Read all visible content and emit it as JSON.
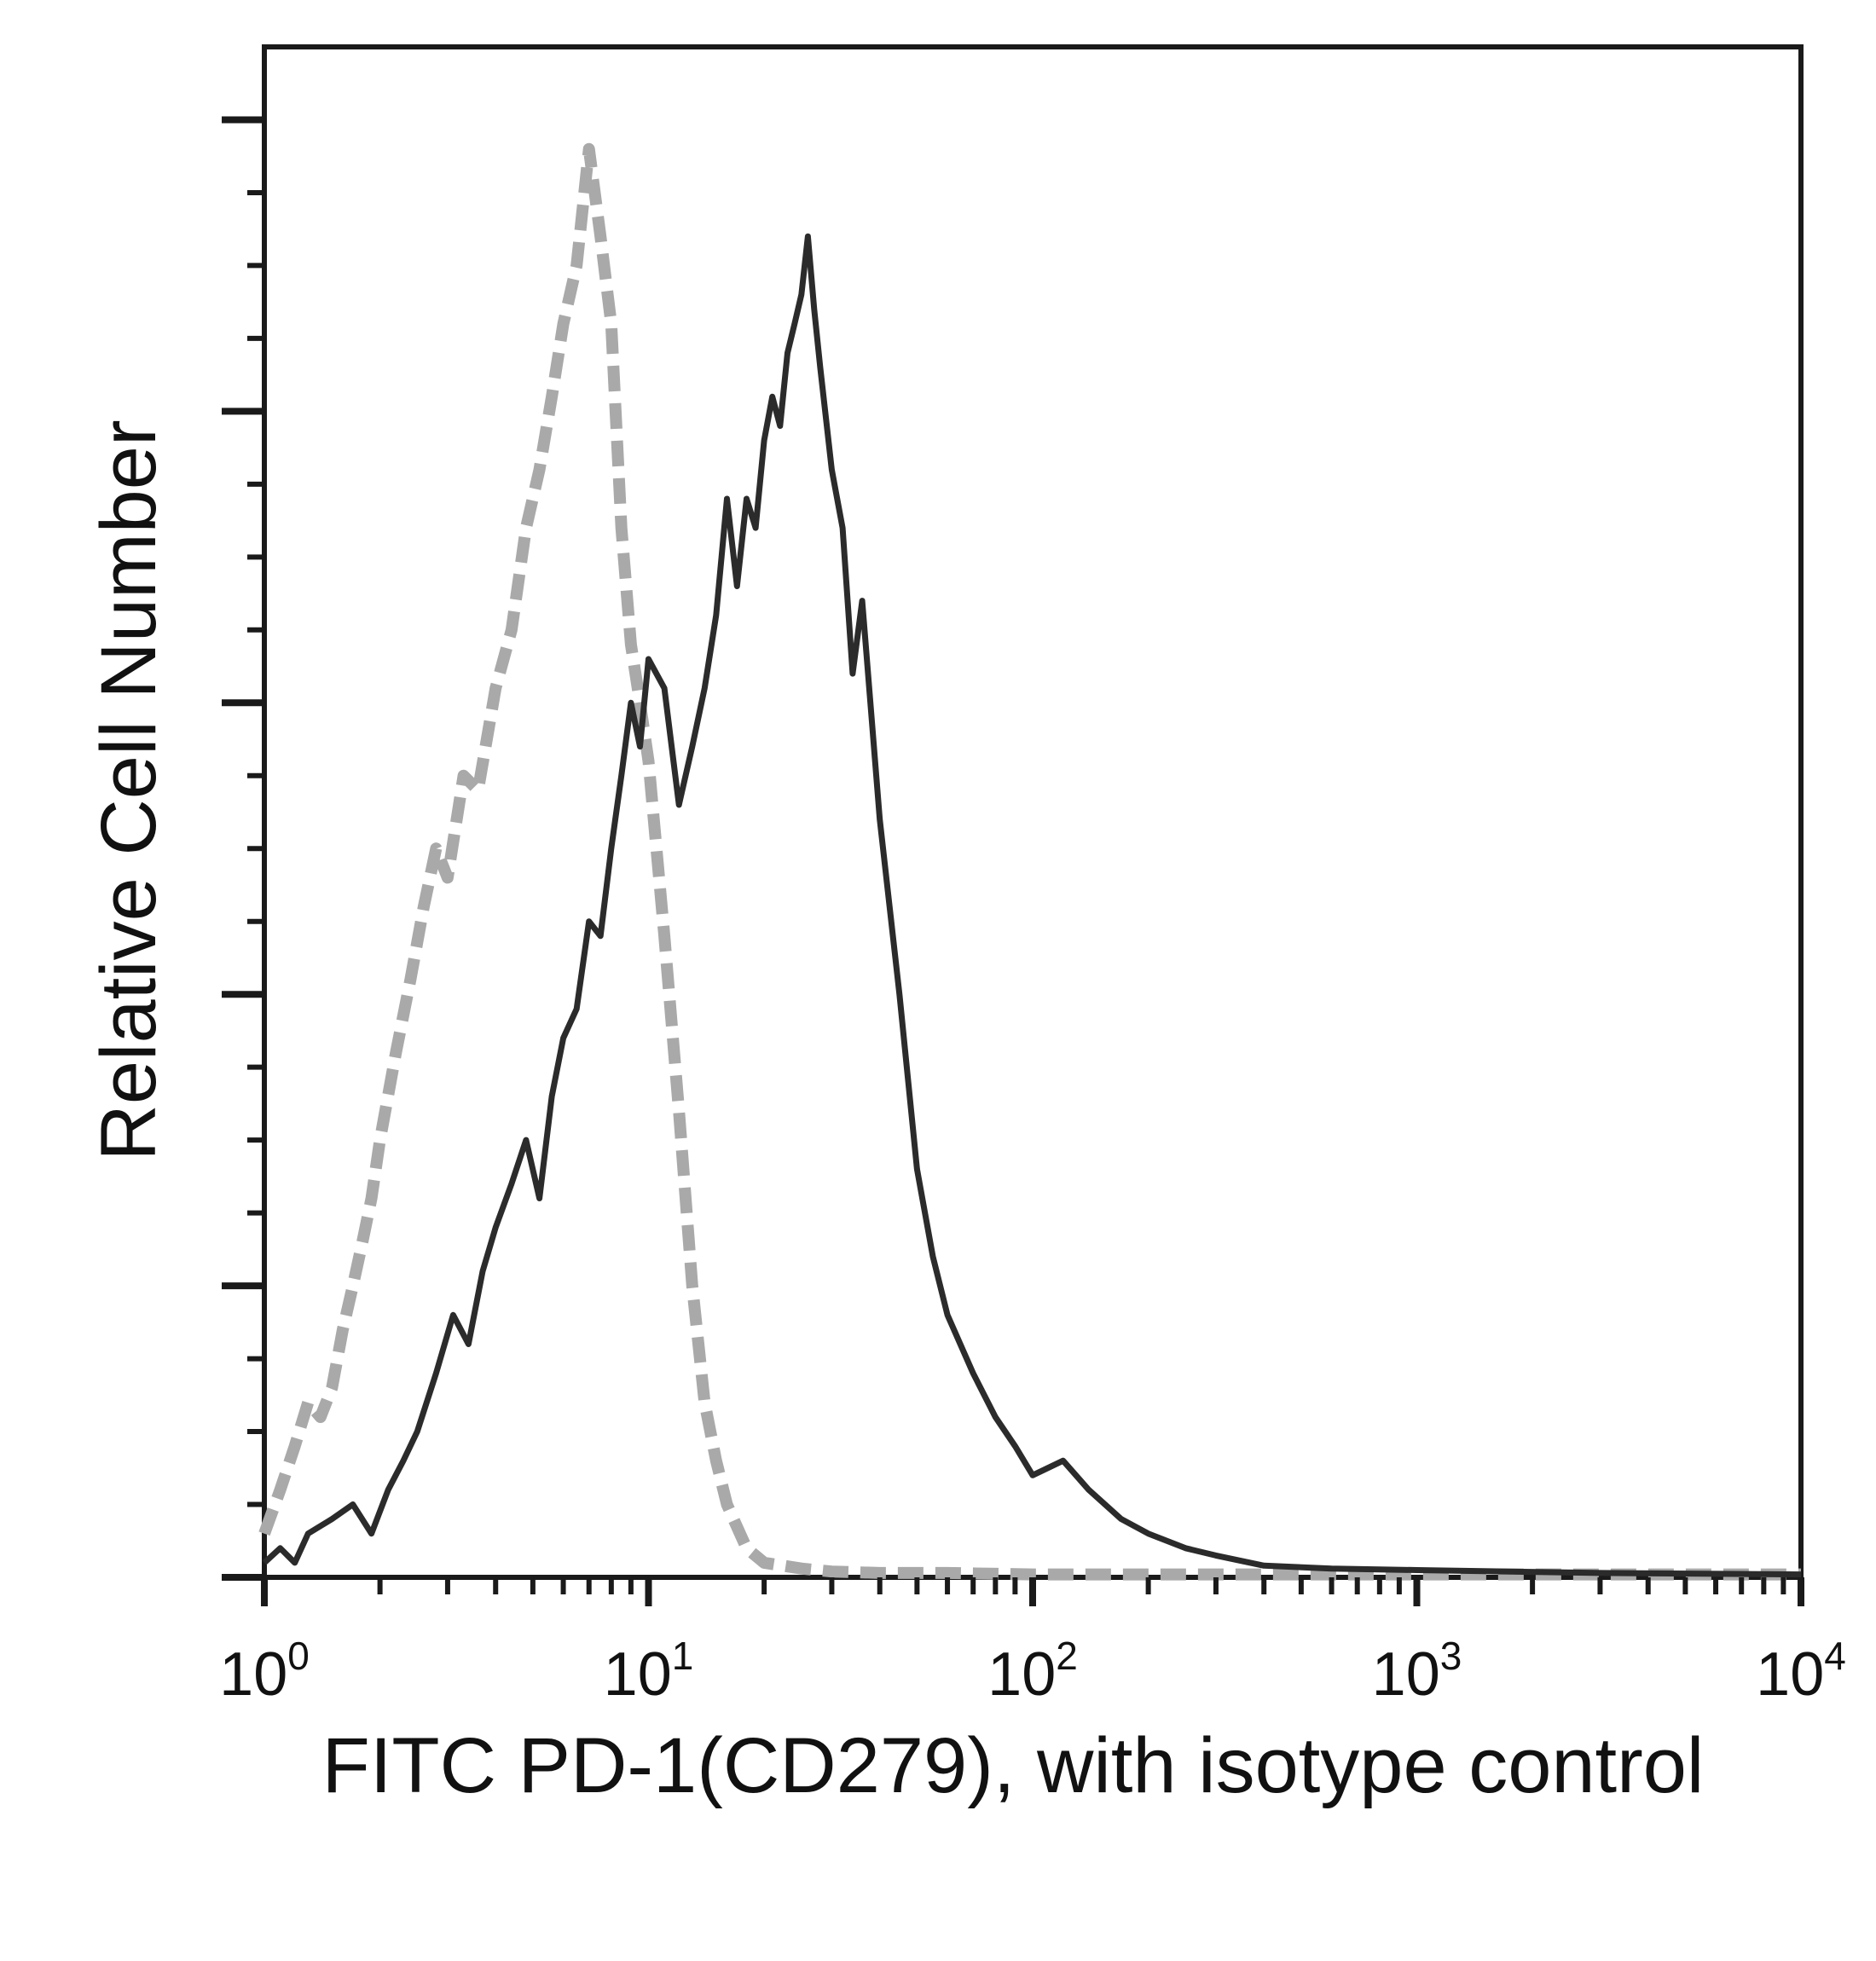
{
  "chart_data": {
    "type": "line",
    "title": "",
    "xlabel": "FITC PD-1(CD279), with isotype control",
    "ylabel": "Relative Cell Number",
    "x_scale": "log10",
    "xlim": [
      1,
      10000
    ],
    "ylim": [
      0,
      105
    ],
    "y_tick_labels_shown": false,
    "x_tick_labels": [
      {
        "base": "10",
        "exp": "0",
        "value": 1
      },
      {
        "base": "10",
        "exp": "1",
        "value": 10
      },
      {
        "base": "10",
        "exp": "2",
        "value": 100
      },
      {
        "base": "10",
        "exp": "3",
        "value": 1000
      },
      {
        "base": "10",
        "exp": "4",
        "value": 10000
      }
    ],
    "grid": false,
    "legend": "none",
    "series": [
      {
        "role": "isotype control",
        "color": "#a9a9a9",
        "style": "dashed",
        "x": [
          1.0,
          1.1,
          1.2,
          1.3,
          1.4,
          1.5,
          1.6,
          1.7,
          1.8,
          1.9,
          2.0,
          2.2,
          2.4,
          2.6,
          2.8,
          3.0,
          3.3,
          3.6,
          4.0,
          4.4,
          4.8,
          5.2,
          5.6,
          6.0,
          6.5,
          7.0,
          7.5,
          8.0,
          8.5,
          9.0,
          9.5,
          10.0,
          11.0,
          12.0,
          13.0,
          14.0,
          15.0,
          16.0,
          18.0,
          20.0,
          25.0,
          30.0,
          40.0,
          60.0,
          100.0,
          300.0,
          1000.0,
          10000.0
        ],
        "y": [
          3,
          6,
          9,
          12,
          11,
          13,
          17,
          20,
          23,
          26,
          30,
          36,
          41,
          46,
          50,
          48,
          55,
          54,
          61,
          65,
          72,
          76,
          81,
          86,
          90,
          98,
          92,
          86,
          72,
          64,
          60,
          56,
          44,
          32,
          20,
          12,
          8,
          5,
          2,
          1,
          0.6,
          0.4,
          0.3,
          0.3,
          0.2,
          0.2,
          0.2,
          0.2
        ]
      },
      {
        "role": "FITC PD-1 (CD279)",
        "color": "#2b2b2b",
        "style": "solid",
        "x": [
          1.0,
          1.1,
          1.2,
          1.3,
          1.5,
          1.7,
          1.9,
          2.1,
          2.3,
          2.5,
          2.8,
          3.1,
          3.4,
          3.7,
          4.0,
          4.4,
          4.8,
          5.2,
          5.6,
          6.0,
          6.5,
          7.0,
          7.5,
          8.0,
          8.5,
          9.0,
          9.5,
          10.0,
          11.0,
          12.0,
          13.0,
          14.0,
          15.0,
          16.0,
          17.0,
          18.0,
          19.0,
          20.0,
          21.0,
          22.0,
          23.0,
          24.0,
          25.0,
          26.0,
          27.0,
          28.0,
          30.0,
          32.0,
          34.0,
          36.0,
          40.0,
          45.0,
          50.0,
          55.0,
          60.0,
          70.0,
          80.0,
          90.0,
          100.0,
          120.0,
          140.0,
          170.0,
          200.0,
          250.0,
          300.0,
          400.0,
          600.0,
          1000.0,
          3000.0,
          10000.0
        ],
        "y": [
          1,
          2,
          1,
          3,
          4,
          5,
          3,
          6,
          8,
          10,
          14,
          18,
          16,
          21,
          24,
          27,
          30,
          26,
          33,
          37,
          39,
          45,
          44,
          50,
          55,
          60,
          57,
          63,
          61,
          53,
          57,
          61,
          66,
          74,
          68,
          74,
          72,
          78,
          81,
          79,
          84,
          86,
          88,
          92,
          87,
          83,
          76,
          72,
          62,
          67,
          52,
          40,
          28,
          22,
          18,
          14,
          11,
          9,
          7,
          8,
          6,
          4,
          3,
          2,
          1.5,
          0.8,
          0.6,
          0.5,
          0.3,
          0.2
        ]
      }
    ]
  }
}
